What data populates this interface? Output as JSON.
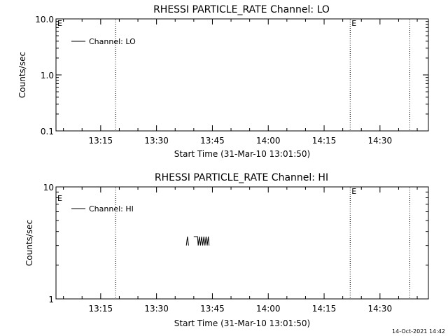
{
  "footer_timestamp": "14-Oct-2021 14:42",
  "chart_data": [
    {
      "type": "line",
      "title": "RHESSI PARTICLE_RATE Channel: LO",
      "xlabel": "Start Time (31-Mar-10 13:01:50)",
      "ylabel": "Counts/sec",
      "yscale": "log",
      "ylim": [
        0.1,
        10.0
      ],
      "yticks": [
        0.1,
        1.0,
        10.0
      ],
      "ytick_labels": [
        "0.1",
        "1.0",
        "10.0"
      ],
      "xlim": [
        "13:03",
        "14:43"
      ],
      "xticks": [
        "13:15",
        "13:30",
        "13:45",
        "14:00",
        "14:15",
        "14:30"
      ],
      "xtick_labels": [
        "13:15",
        "13:30",
        "13:45",
        "14:00",
        "14:15",
        "14:30"
      ],
      "vlines": [
        {
          "time": "13:19",
          "label": ""
        },
        {
          "time": "14:22",
          "label": "E"
        },
        {
          "time": "14:38",
          "label": ""
        }
      ],
      "corner_mark": "E",
      "legend": {
        "position": "top-left",
        "entries": [
          "Channel: LO"
        ]
      },
      "series": [
        {
          "name": "Channel: LO",
          "color": "#000000",
          "points": []
        }
      ],
      "grid": false
    },
    {
      "type": "line",
      "title": "RHESSI PARTICLE_RATE Channel: HI",
      "xlabel": "Start Time (31-Mar-10 13:01:50)",
      "ylabel": "Counts/sec",
      "yscale": "log",
      "ylim": [
        1,
        10
      ],
      "yticks": [
        1,
        10
      ],
      "ytick_labels": [
        "1",
        "10"
      ],
      "xlim": [
        "13:03",
        "14:43"
      ],
      "xticks": [
        "13:15",
        "13:30",
        "13:45",
        "14:00",
        "14:15",
        "14:30"
      ],
      "xtick_labels": [
        "13:15",
        "13:30",
        "13:45",
        "14:00",
        "14:15",
        "14:30"
      ],
      "vlines": [
        {
          "time": "13:19",
          "label": ""
        },
        {
          "time": "14:22",
          "label": "E"
        },
        {
          "time": "14:38",
          "label": ""
        }
      ],
      "corner_mark": "E",
      "legend": {
        "position": "top-left",
        "entries": [
          "Channel: HI"
        ]
      },
      "series": [
        {
          "name": "Channel: HI",
          "color": "#000000",
          "segments": [
            [
              [
                35.0,
                3.0
              ],
              [
                35.3,
                3.6
              ],
              [
                35.6,
                3.0
              ]
            ],
            [
              [
                37.0,
                3.6
              ],
              [
                38.0,
                3.6
              ],
              [
                38.2,
                3.0
              ],
              [
                38.5,
                3.6
              ],
              [
                38.8,
                3.0
              ],
              [
                39.1,
                3.6
              ],
              [
                39.4,
                3.0
              ],
              [
                39.7,
                3.6
              ],
              [
                40.0,
                3.0
              ],
              [
                40.3,
                3.6
              ],
              [
                40.6,
                3.0
              ],
              [
                40.9,
                3.6
              ],
              [
                41.1,
                3.0
              ]
            ]
          ]
        }
      ],
      "grid": false
    }
  ]
}
